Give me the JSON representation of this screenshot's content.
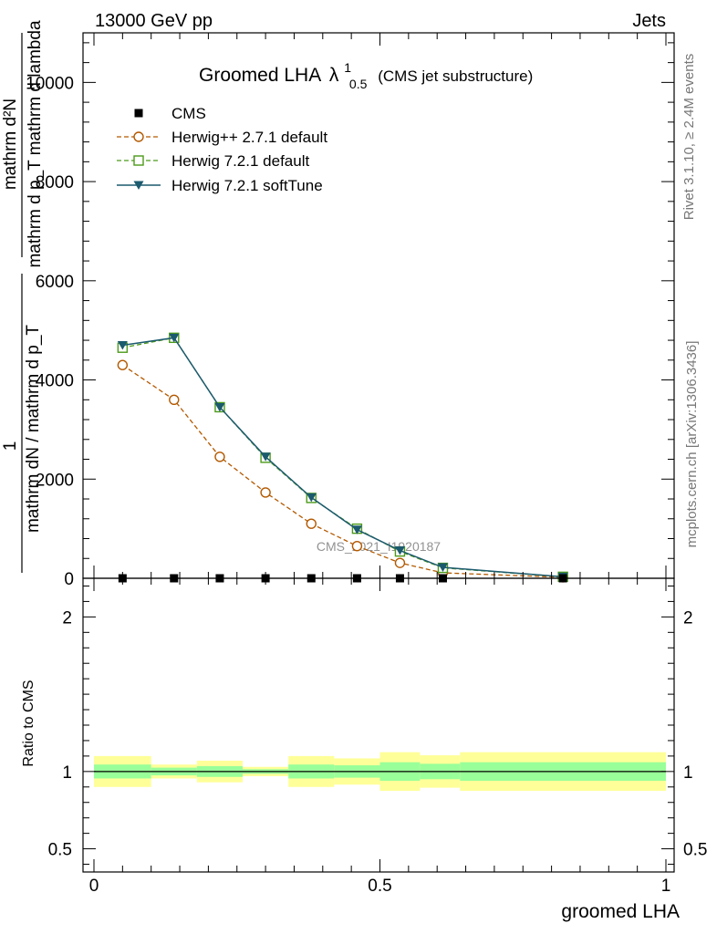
{
  "header": {
    "left": "13000 GeV pp",
    "right": "Jets"
  },
  "side_labels": {
    "rivet": "Rivet 3.1.10, ≥ 2.4M events",
    "mcplots": "mcplots.cern.ch [arXiv:1306.3436]"
  },
  "watermark": "CMS_2021_I1920187",
  "colors": {
    "herwig_old": "#b35900",
    "herwig_def": "#4c9a1a",
    "herwig_soft": "#1c5a6e",
    "band_inner": "#99ff99",
    "band_outer": "#ffff99"
  },
  "chart_data": [
    {
      "type": "line",
      "title": "Groomed LHA",
      "title_symbol": "λ",
      "title_sup": "1",
      "title_sub": "0.5",
      "title_note": "(CMS jet substructure)",
      "ylabel": {
        "num_top": "mathrm d²N",
        "num_bottom": "mathrm d p_T mathrm d lambda",
        "one": "1",
        "den": "mathrm dN / mathrm d p_T"
      },
      "ylim": [
        0,
        11000
      ],
      "yticks": [
        0,
        2000,
        4000,
        6000,
        8000,
        10000
      ],
      "ytick_labels": [
        "0",
        "2000",
        "4000",
        "6000",
        "8000",
        "10000"
      ],
      "xlim": [
        0,
        1
      ],
      "legend_position": "top-left",
      "series": [
        {
          "name": "CMS",
          "style": "marker",
          "x": [
            0.05,
            0.14,
            0.22,
            0.3,
            0.38,
            0.46,
            0.535,
            0.61,
            0.82
          ],
          "values": [
            0,
            0,
            0,
            0,
            0,
            0,
            0,
            0,
            0
          ]
        },
        {
          "name": "Herwig++ 2.7.1 default",
          "style": "circle-dashed",
          "x": [
            0.05,
            0.14,
            0.22,
            0.3,
            0.38,
            0.46,
            0.535,
            0.61,
            0.82
          ],
          "values": [
            4300,
            3600,
            2450,
            1730,
            1100,
            650,
            310,
            110,
            20
          ]
        },
        {
          "name": "Herwig 7.2.1 default",
          "style": "square-dashed",
          "x": [
            0.05,
            0.14,
            0.22,
            0.3,
            0.38,
            0.46,
            0.535,
            0.61,
            0.82
          ],
          "values": [
            4650,
            4850,
            3450,
            2430,
            1620,
            1000,
            540,
            210,
            30
          ]
        },
        {
          "name": "Herwig 7.2.1 softTune",
          "style": "triangle-solid",
          "x": [
            0.05,
            0.14,
            0.22,
            0.3,
            0.38,
            0.46,
            0.535,
            0.61,
            0.82
          ],
          "values": [
            4700,
            4850,
            3450,
            2450,
            1630,
            980,
            560,
            220,
            30
          ]
        }
      ]
    },
    {
      "type": "area",
      "ylabel": "Ratio to CMS",
      "xlabel": "groomed LHA",
      "ylim": [
        0.35,
        2.25
      ],
      "yticks": [
        0.5,
        1,
        2
      ],
      "ytick_labels": [
        "0.5",
        "1",
        "2"
      ],
      "xlim": [
        0,
        1
      ],
      "xticks": [
        0,
        0.5,
        1
      ],
      "xtick_labels": [
        "0",
        "0.5",
        "1"
      ],
      "bands": [
        {
          "x0": 0.0,
          "x1": 0.1,
          "inner": [
            0.955,
            1.045
          ],
          "outer": [
            0.9,
            1.1
          ]
        },
        {
          "x0": 0.1,
          "x1": 0.18,
          "inner": [
            0.975,
            1.025
          ],
          "outer": [
            0.955,
            1.045
          ]
        },
        {
          "x0": 0.18,
          "x1": 0.26,
          "inner": [
            0.965,
            1.035
          ],
          "outer": [
            0.93,
            1.07
          ]
        },
        {
          "x0": 0.26,
          "x1": 0.34,
          "inner": [
            0.985,
            1.015
          ],
          "outer": [
            0.97,
            1.03
          ]
        },
        {
          "x0": 0.34,
          "x1": 0.42,
          "inner": [
            0.955,
            1.045
          ],
          "outer": [
            0.9,
            1.1
          ]
        },
        {
          "x0": 0.42,
          "x1": 0.5,
          "inner": [
            0.96,
            1.04
          ],
          "outer": [
            0.915,
            1.085
          ]
        },
        {
          "x0": 0.5,
          "x1": 0.57,
          "inner": [
            0.94,
            1.06
          ],
          "outer": [
            0.875,
            1.125
          ]
        },
        {
          "x0": 0.57,
          "x1": 0.64,
          "inner": [
            0.95,
            1.05
          ],
          "outer": [
            0.895,
            1.105
          ]
        },
        {
          "x0": 0.64,
          "x1": 1.0,
          "inner": [
            0.94,
            1.06
          ],
          "outer": [
            0.875,
            1.125
          ]
        }
      ],
      "reference_line": 1
    }
  ]
}
